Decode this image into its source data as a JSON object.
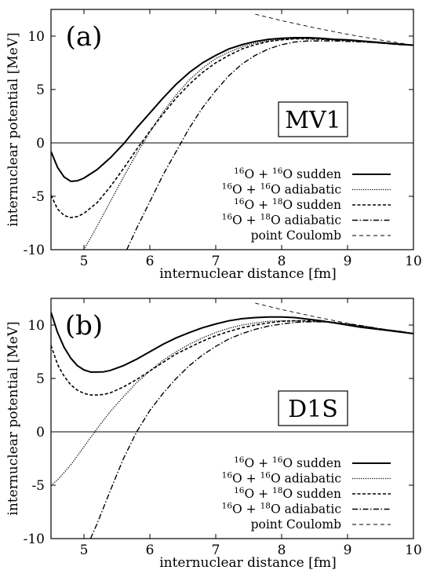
{
  "chart_data": [
    {
      "type": "line",
      "panel_tag": "(a)",
      "interaction_label": "MV1",
      "xlabel": "internuclear distance [fm]",
      "ylabel": "internuclear potential [MeV]",
      "xlim": [
        4.5,
        10
      ],
      "ylim": [
        -10,
        12.5
      ],
      "xticks": [
        5,
        6,
        7,
        8,
        9,
        10
      ],
      "yticks": [
        -10,
        -5,
        0,
        5,
        10
      ],
      "zero_line": true,
      "legend_position": "bottom-right",
      "series": [
        {
          "name": "sudden",
          "proj": "16",
          "targ": "16",
          "style": "solid",
          "x": [
            4.5,
            4.6,
            4.7,
            4.8,
            4.9,
            5.0,
            5.2,
            5.4,
            5.6,
            5.8,
            6.0,
            6.2,
            6.4,
            6.6,
            6.8,
            7.0,
            7.2,
            7.4,
            7.6,
            7.8,
            8.0,
            8.2,
            8.4,
            8.6,
            8.8,
            9.0,
            9.2,
            9.4,
            9.6,
            9.8,
            10.0
          ],
          "y": [
            -0.8,
            -2.3,
            -3.2,
            -3.6,
            -3.55,
            -3.3,
            -2.5,
            -1.4,
            -0.1,
            1.4,
            2.8,
            4.2,
            5.5,
            6.6,
            7.5,
            8.2,
            8.8,
            9.2,
            9.5,
            9.7,
            9.8,
            9.85,
            9.85,
            9.8,
            9.7,
            9.65,
            9.55,
            9.45,
            9.35,
            9.25,
            9.15
          ]
        },
        {
          "name": "adiabatic",
          "proj": "16",
          "targ": "16",
          "style": "dotted",
          "x": [
            5.0,
            5.2,
            5.4,
            5.6,
            5.8,
            6.0,
            6.2,
            6.4,
            6.6,
            6.8,
            7.0,
            7.2,
            7.4,
            7.6,
            7.8,
            8.0,
            8.2,
            8.4,
            8.6,
            8.8,
            9.0,
            9.2,
            9.4,
            9.6,
            9.8,
            10.0
          ],
          "y": [
            -10.0,
            -7.8,
            -5.5,
            -3.2,
            -1.0,
            1.0,
            2.9,
            4.5,
            5.9,
            7.0,
            7.9,
            8.5,
            9.0,
            9.35,
            9.55,
            9.7,
            9.75,
            9.75,
            9.7,
            9.65,
            9.6,
            9.5,
            9.4,
            9.3,
            9.2,
            9.15
          ]
        },
        {
          "name": "sudden",
          "proj": "16",
          "targ": "18",
          "style": "dashed",
          "x": [
            4.5,
            4.6,
            4.7,
            4.8,
            4.9,
            5.0,
            5.2,
            5.4,
            5.6,
            5.8,
            6.0,
            6.2,
            6.4,
            6.6,
            6.8,
            7.0,
            7.2,
            7.4,
            7.6,
            7.8,
            8.0,
            8.2,
            8.4,
            8.6,
            8.8,
            9.0,
            9.2,
            9.4,
            9.6,
            9.8,
            10.0
          ],
          "y": [
            -4.9,
            -6.2,
            -6.8,
            -7.0,
            -6.9,
            -6.6,
            -5.6,
            -4.1,
            -2.4,
            -0.6,
            1.1,
            2.7,
            4.2,
            5.5,
            6.6,
            7.5,
            8.2,
            8.8,
            9.2,
            9.5,
            9.65,
            9.75,
            9.75,
            9.7,
            9.65,
            9.6,
            9.5,
            9.4,
            9.3,
            9.2,
            9.15
          ]
        },
        {
          "name": "adiabatic",
          "proj": "16",
          "targ": "18",
          "style": "dashdot",
          "x": [
            5.65,
            5.8,
            6.0,
            6.2,
            6.4,
            6.6,
            6.8,
            7.0,
            7.2,
            7.4,
            7.6,
            7.8,
            8.0,
            8.2,
            8.4,
            8.6,
            8.8,
            9.0,
            9.2,
            9.4,
            9.6,
            9.8,
            10.0
          ],
          "y": [
            -10.0,
            -8.0,
            -5.5,
            -3.0,
            -0.8,
            1.4,
            3.3,
            4.9,
            6.3,
            7.4,
            8.2,
            8.8,
            9.2,
            9.45,
            9.55,
            9.55,
            9.55,
            9.5,
            9.45,
            9.4,
            9.3,
            9.2,
            9.15
          ]
        },
        {
          "name": "point Coulomb",
          "style": "thindash",
          "x": [
            7.6,
            8.0,
            8.5,
            9.0,
            9.5,
            10.0
          ],
          "y": [
            12.05,
            11.45,
            10.78,
            10.17,
            9.64,
            9.15
          ]
        }
      ]
    },
    {
      "type": "line",
      "panel_tag": "(b)",
      "interaction_label": "D1S",
      "xlabel": "internuclear distance [fm]",
      "ylabel": "internuclear potential [MeV]",
      "xlim": [
        4.5,
        10
      ],
      "ylim": [
        -10,
        12.5
      ],
      "xticks": [
        5,
        6,
        7,
        8,
        9,
        10
      ],
      "yticks": [
        -10,
        -5,
        0,
        5,
        10
      ],
      "zero_line": true,
      "legend_position": "bottom-right",
      "series": [
        {
          "name": "sudden",
          "proj": "16",
          "targ": "16",
          "style": "solid",
          "x": [
            4.5,
            4.6,
            4.7,
            4.8,
            4.9,
            5.0,
            5.1,
            5.2,
            5.3,
            5.4,
            5.6,
            5.8,
            6.0,
            6.2,
            6.4,
            6.6,
            6.8,
            7.0,
            7.2,
            7.4,
            7.6,
            7.8,
            8.0,
            8.2,
            8.4,
            8.6,
            8.8,
            9.0,
            9.2,
            9.4,
            9.6,
            9.8,
            10.0
          ],
          "y": [
            11.2,
            9.3,
            7.9,
            6.9,
            6.2,
            5.8,
            5.6,
            5.6,
            5.62,
            5.75,
            6.2,
            6.8,
            7.5,
            8.2,
            8.8,
            9.3,
            9.75,
            10.1,
            10.4,
            10.6,
            10.7,
            10.75,
            10.75,
            10.7,
            10.55,
            10.4,
            10.2,
            10.0,
            9.8,
            9.65,
            9.5,
            9.35,
            9.2
          ]
        },
        {
          "name": "adiabatic",
          "proj": "16",
          "targ": "16",
          "style": "dotted",
          "x": [
            4.5,
            4.6,
            4.8,
            5.0,
            5.2,
            5.4,
            5.6,
            5.8,
            6.0,
            6.2,
            6.4,
            6.6,
            6.8,
            7.0,
            7.2,
            7.4,
            7.6,
            7.8,
            8.0,
            8.2,
            8.4,
            8.6,
            8.8,
            9.0,
            9.2,
            9.4,
            9.6,
            9.8,
            10.0
          ],
          "y": [
            -5.0,
            -4.5,
            -3.1,
            -1.4,
            0.3,
            1.9,
            3.3,
            4.6,
            5.7,
            6.7,
            7.5,
            8.2,
            8.8,
            9.3,
            9.7,
            10.0,
            10.2,
            10.35,
            10.4,
            10.4,
            10.35,
            10.3,
            10.2,
            10.05,
            9.9,
            9.7,
            9.55,
            9.4,
            9.2
          ]
        },
        {
          "name": "sudden",
          "proj": "16",
          "targ": "18",
          "style": "dashed",
          "x": [
            4.5,
            4.6,
            4.7,
            4.8,
            4.9,
            5.0,
            5.1,
            5.2,
            5.3,
            5.4,
            5.6,
            5.8,
            6.0,
            6.2,
            6.4,
            6.6,
            6.8,
            7.0,
            7.2,
            7.4,
            7.6,
            7.8,
            8.0,
            8.2,
            8.4,
            8.6,
            8.8,
            9.0,
            9.2,
            9.4,
            9.6,
            9.8,
            10.0
          ],
          "y": [
            8.1,
            6.3,
            5.2,
            4.4,
            3.9,
            3.6,
            3.45,
            3.45,
            3.5,
            3.65,
            4.2,
            4.9,
            5.7,
            6.5,
            7.3,
            7.9,
            8.5,
            9.0,
            9.4,
            9.75,
            10.0,
            10.2,
            10.35,
            10.4,
            10.4,
            10.35,
            10.25,
            10.05,
            9.9,
            9.7,
            9.55,
            9.4,
            9.2
          ]
        },
        {
          "name": "adiabatic",
          "proj": "16",
          "targ": "18",
          "style": "dashdot",
          "x": [
            5.1,
            5.2,
            5.4,
            5.6,
            5.8,
            6.0,
            6.2,
            6.4,
            6.6,
            6.8,
            7.0,
            7.2,
            7.4,
            7.6,
            7.8,
            8.0,
            8.2,
            8.4,
            8.6,
            8.8,
            9.0,
            9.2,
            9.4,
            9.6,
            9.8,
            10.0
          ],
          "y": [
            -10.0,
            -8.6,
            -5.5,
            -2.5,
            0.0,
            2.0,
            3.6,
            5.0,
            6.2,
            7.2,
            8.0,
            8.7,
            9.2,
            9.6,
            9.9,
            10.1,
            10.25,
            10.3,
            10.3,
            10.25,
            10.1,
            9.95,
            9.75,
            9.55,
            9.4,
            9.2
          ]
        },
        {
          "name": "point Coulomb",
          "style": "thindash",
          "x": [
            7.6,
            8.0,
            8.5,
            9.0,
            9.5,
            10.0
          ],
          "y": [
            12.05,
            11.45,
            10.78,
            10.17,
            9.64,
            9.15
          ]
        }
      ]
    }
  ]
}
